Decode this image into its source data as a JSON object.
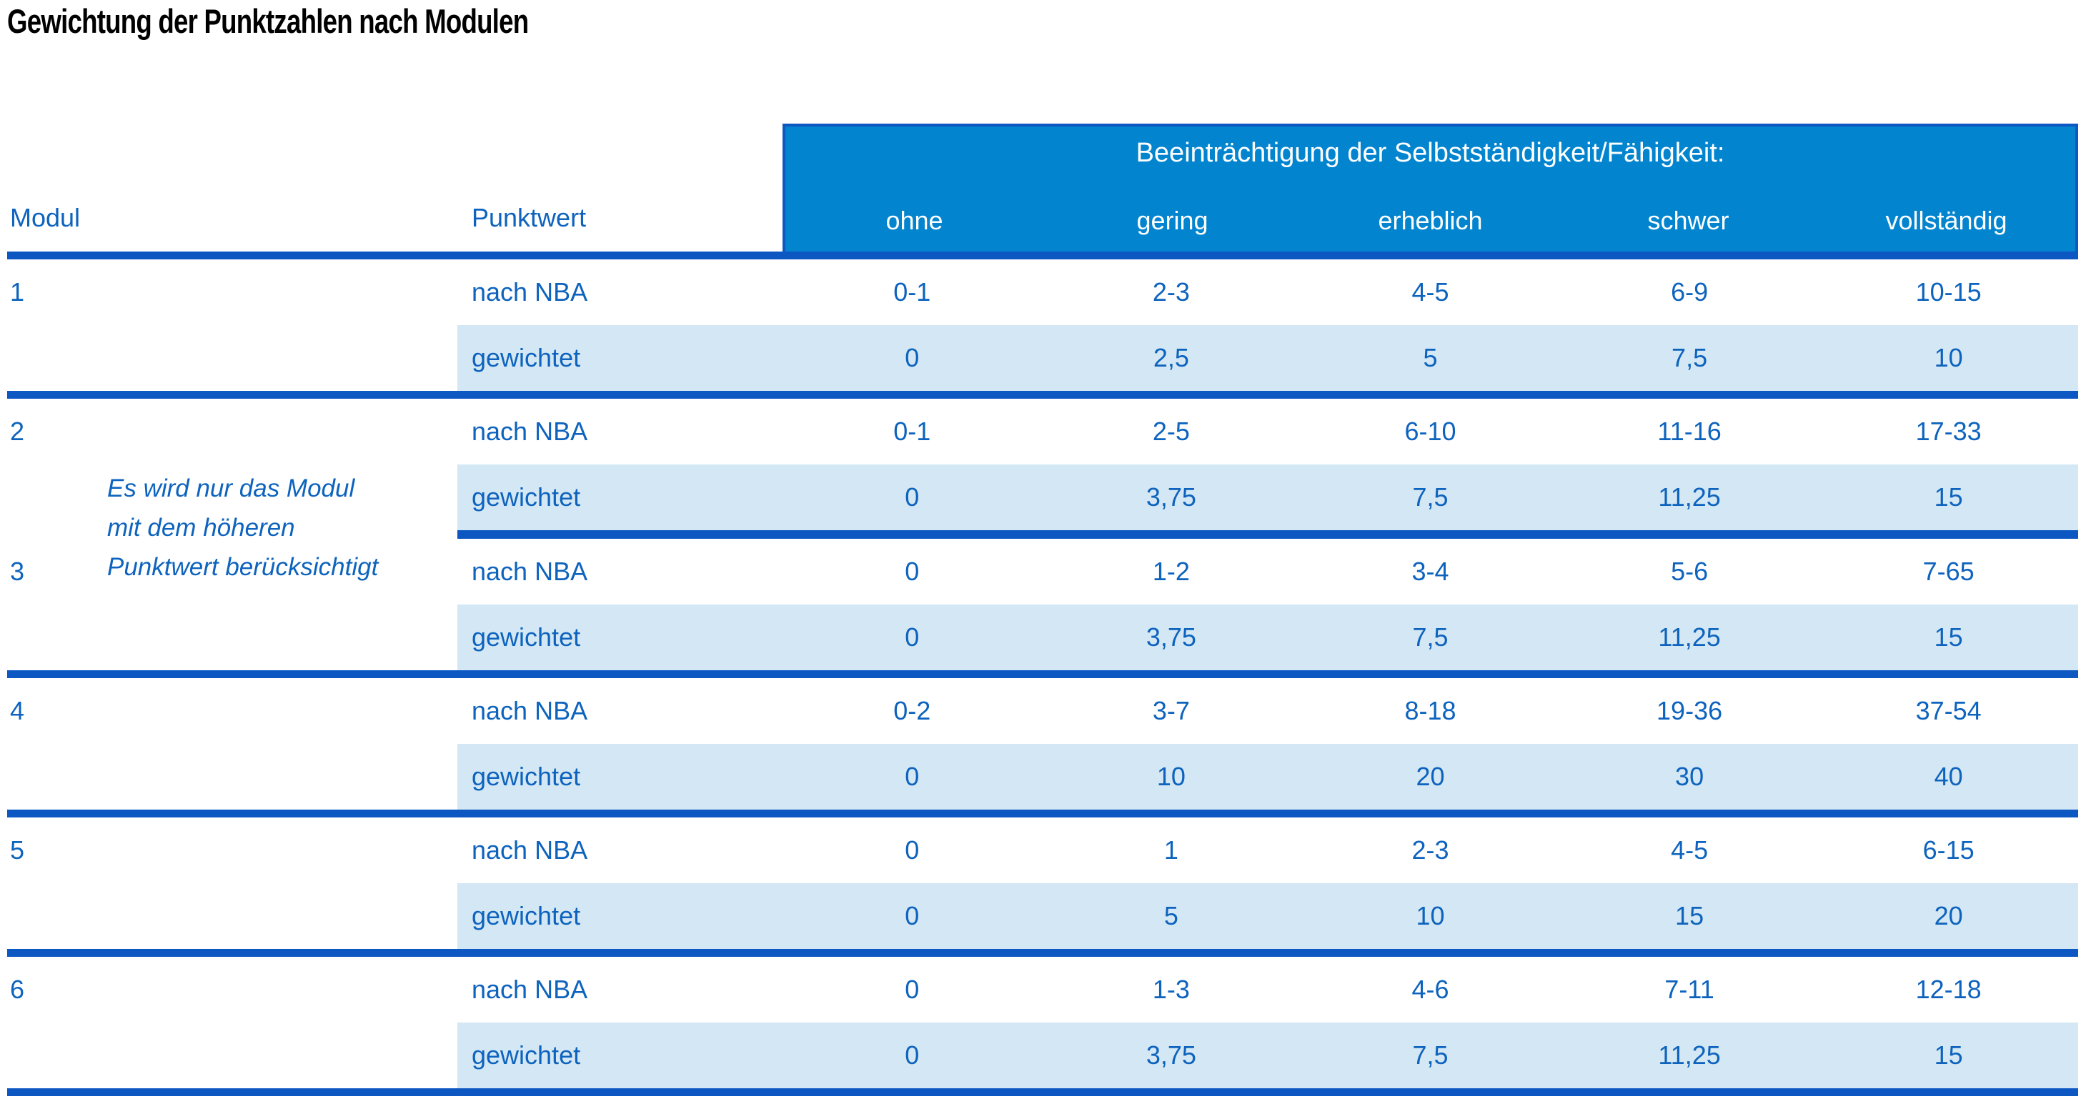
{
  "page": {
    "title": "Gewichtung der Punktzahlen nach Modulen"
  },
  "table": {
    "col_headers": {
      "modul": "Modul",
      "punktwert": "Punktwert"
    },
    "banner": {
      "title": "Beeinträchtigung der Selbstständigkeit/Fähigkeit:",
      "levels": [
        "ohne",
        "gering",
        "erheblich",
        "schwer",
        "vollständig"
      ]
    },
    "row_labels": {
      "raw": "nach NBA",
      "weighted": "gewichtet"
    },
    "note": {
      "lines": [
        "Es wird nur das Modul",
        "mit dem höheren",
        "Punktwert berücksichtigt"
      ]
    },
    "modules": [
      {
        "id": "1",
        "raw": [
          "0-1",
          "2-3",
          "4-5",
          "6-9",
          "10-15"
        ],
        "weighted": [
          "0",
          "2,5",
          "5",
          "7,5",
          "10"
        ]
      },
      {
        "id": "2",
        "raw": [
          "0-1",
          "2-5",
          "6-10",
          "11-16",
          "17-33"
        ],
        "weighted": [
          "0",
          "3,75",
          "7,5",
          "11,25",
          "15"
        ]
      },
      {
        "id": "3",
        "raw": [
          "0",
          "1-2",
          "3-4",
          "5-6",
          "7-65"
        ],
        "weighted": [
          "0",
          "3,75",
          "7,5",
          "11,25",
          "15"
        ]
      },
      {
        "id": "4",
        "raw": [
          "0-2",
          "3-7",
          "8-18",
          "19-36",
          "37-54"
        ],
        "weighted": [
          "0",
          "10",
          "20",
          "30",
          "40"
        ]
      },
      {
        "id": "5",
        "raw": [
          "0",
          "1",
          "2-3",
          "4-5",
          "6-15"
        ],
        "weighted": [
          "0",
          "5",
          "10",
          "15",
          "20"
        ]
      },
      {
        "id": "6",
        "raw": [
          "0",
          "1-3",
          "4-6",
          "7-11",
          "12-18"
        ],
        "weighted": [
          "0",
          "3,75",
          "7,5",
          "11,25",
          "15"
        ]
      }
    ],
    "colors": {
      "banner_bg": "#0284cf",
      "rule_blue": "#0d57c3",
      "shaded_row": "#d4e7f4",
      "text_blue": "#0d63bd"
    }
  }
}
